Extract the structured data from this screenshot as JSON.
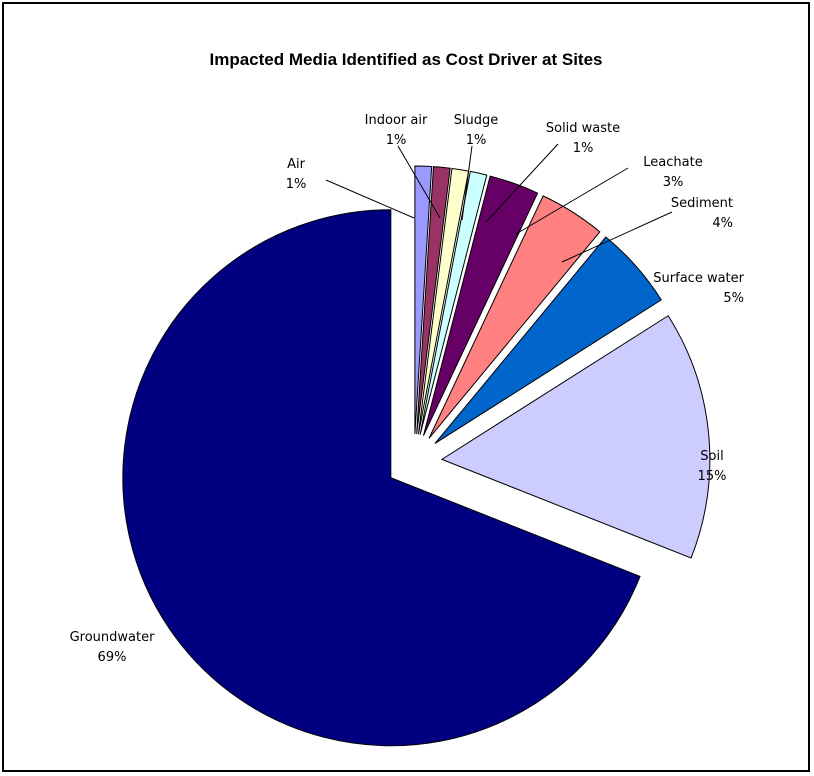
{
  "chart_data": {
    "type": "pie",
    "title": "Impacted Media Identified as Cost Driver at Sites",
    "slices": [
      {
        "label": "Air",
        "percent_label": "1%",
        "value": 1,
        "color": "#9999FF",
        "exploded": true
      },
      {
        "label": "Indoor air",
        "percent_label": "1%",
        "value": 1,
        "color": "#993366",
        "exploded": true
      },
      {
        "label": "Sludge",
        "percent_label": "1%",
        "value": 1,
        "color": "#FFFFCC",
        "exploded": true
      },
      {
        "label": "Solid waste",
        "percent_label": "1%",
        "value": 1,
        "color": "#CCFFFF",
        "exploded": true
      },
      {
        "label": "Leachate",
        "percent_label": "3%",
        "value": 3,
        "color": "#660066",
        "exploded": true
      },
      {
        "label": "Sediment",
        "percent_label": "4%",
        "value": 4,
        "color": "#FF8080",
        "exploded": true
      },
      {
        "label": "Surface water",
        "percent_label": "5%",
        "value": 5,
        "color": "#0066CC",
        "exploded": true
      },
      {
        "label": "Soil",
        "percent_label": "15%",
        "value": 15,
        "color": "#CCCCFF",
        "exploded": true
      },
      {
        "label": "Groundwater",
        "percent_label": "69%",
        "value": 69,
        "color": "#000080",
        "exploded": true
      }
    ]
  }
}
